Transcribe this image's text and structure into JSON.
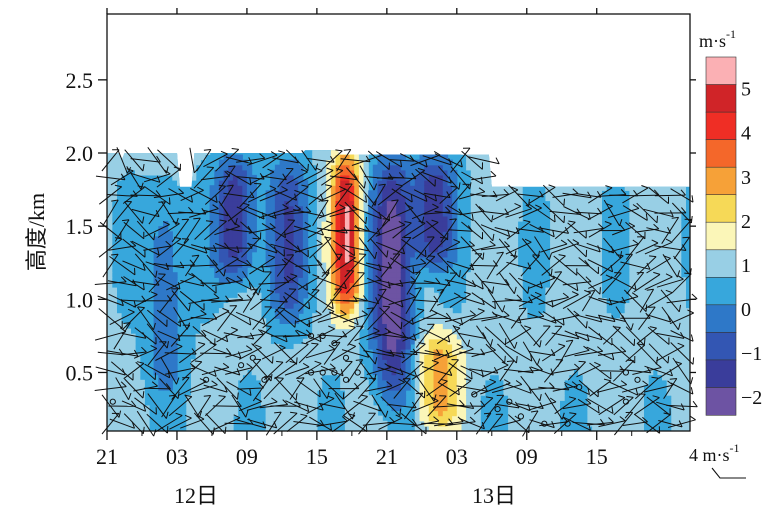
{
  "chart_data": {
    "type": "heatmap",
    "ylabel": "高度/km",
    "x_ticks": [
      "21",
      "03",
      "09",
      "15",
      "21",
      "03",
      "09",
      "15"
    ],
    "date_labels": [
      "12日",
      "13日"
    ],
    "y_ticks": [
      "0.5",
      "1.0",
      "1.5",
      "2.0",
      "2.5"
    ],
    "ylim": [
      0.1,
      2.95
    ],
    "colorbar": {
      "unit": "m·s",
      "unit_exp": "-1",
      "ticks": [
        "5",
        "4",
        "3",
        "2",
        "1",
        "0",
        "−1",
        "−2"
      ],
      "range": [
        -2.5,
        5.5
      ],
      "colors": [
        "#fbb0b4",
        "#d02428",
        "#ef2e25",
        "#f4672a",
        "#f6a138",
        "#f6d957",
        "#fbf6b8",
        "#98cfe5",
        "#37a7dc",
        "#2e78c8",
        "#3356b3",
        "#3a3d9b",
        "#6d53a3"
      ]
    },
    "features": [
      {
        "kind": "updraft_core",
        "time_h": 20.5,
        "height_range_km": [
          0.9,
          2.0
        ],
        "peak_m_s": 5
      },
      {
        "kind": "updraft",
        "time_h": 28.5,
        "height_range_km": [
          0.1,
          0.8
        ],
        "peak_m_s": 2
      },
      {
        "kind": "downdraft",
        "time_h": 24.5,
        "height_range_km": [
          0.3,
          2.0
        ],
        "min_m_s": -2.5
      },
      {
        "kind": "downdraft",
        "time_h": 28,
        "height_range_km": [
          1.2,
          2.0
        ],
        "min_m_s": -2
      },
      {
        "kind": "downdraft",
        "time_h": 11,
        "height_range_km": [
          1.1,
          2.0
        ],
        "min_m_s": -2
      },
      {
        "kind": "downdraft",
        "time_h": 15.5,
        "height_range_km": [
          0.8,
          2.0
        ],
        "min_m_s": -1.5
      },
      {
        "kind": "downdraft",
        "time_h": 5,
        "height_range_km": [
          0.3,
          1.8
        ],
        "min_m_s": -1
      }
    ],
    "legend_wind_label": "4 m·s",
    "legend_wind_exp": "-1"
  }
}
